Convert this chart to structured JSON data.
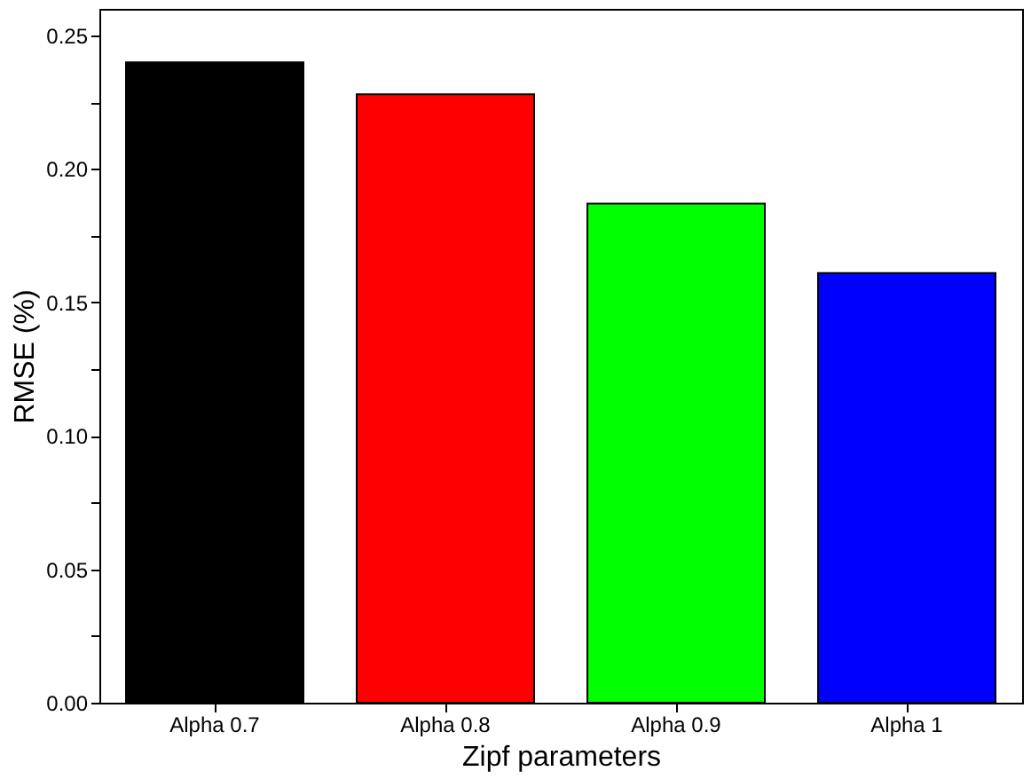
{
  "chart_data": {
    "type": "bar",
    "xlabel": "Zipf parameters",
    "ylabel": "RMSE (%)",
    "categories": [
      "Alpha 0.7",
      "Alpha 0.8",
      "Alpha 0.9",
      "Alpha 1"
    ],
    "values": [
      0.24,
      0.228,
      0.187,
      0.161
    ],
    "colors": [
      "#000000",
      "#ff0000",
      "#00ff00",
      "#0000ff"
    ],
    "ylim": [
      0,
      0.26
    ],
    "yticks": [
      {
        "value": 0,
        "label": "0.00"
      },
      {
        "value": 0.025,
        "label": null
      },
      {
        "value": 0.05,
        "label": "0.05"
      },
      {
        "value": 0.075,
        "label": null
      },
      {
        "value": 0.1,
        "label": "0.10"
      },
      {
        "value": 0.125,
        "label": null
      },
      {
        "value": 0.15,
        "label": "0.15"
      },
      {
        "value": 0.175,
        "label": null
      },
      {
        "value": 0.2,
        "label": "0.20"
      },
      {
        "value": 0.225,
        "label": null
      },
      {
        "value": 0.25,
        "label": "0.25"
      }
    ],
    "grid": false
  }
}
